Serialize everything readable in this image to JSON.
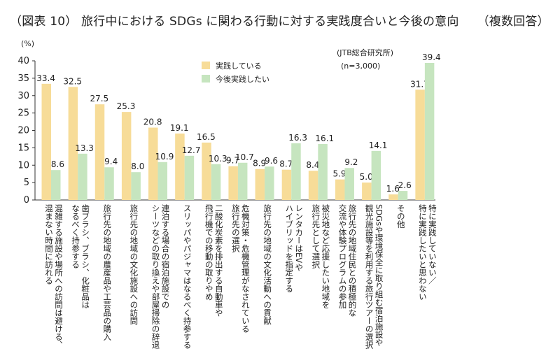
{
  "title": "（図表 10） 旅行中における SDGs に関わる行動に対する実践度合いと今後の意向",
  "title_suffix": "（複数回答）",
  "unit_label": "(%)",
  "source_note": "(JTB総合研究所)",
  "sample_note": "(n=3,000)",
  "colors": {
    "practice": "#f7dc98",
    "future": "#c6e5bf",
    "axis": "#333333"
  },
  "chart_data": {
    "type": "bar",
    "title": "（図表 10） 旅行中における SDGs に関わる行動に対する実践度合いと今後の意向",
    "ylim": [
      0,
      40
    ],
    "yticks": [
      0,
      5,
      10,
      15,
      20,
      25,
      30,
      35,
      40
    ],
    "grid": false,
    "legend_position": "top-center",
    "categories": [
      [
        "混雑する施設や場所への訪問は避ける、",
        "混まない時間に訪れる"
      ],
      [
        "歯ブラシ、ブラシ、化粧品は",
        "なるべく持参する"
      ],
      [
        "旅行先の地域の農産品や工芸品の購入"
      ],
      [
        "旅行先の地域の文化施設への訪問"
      ],
      [
        "連泊する場合の宿泊施設での",
        "シーツなどの取り換えや部屋掃除の辞退"
      ],
      [
        "スリッパやパジャマはなるべく持参する"
      ],
      [
        "二酸化炭素を排出する自動車や",
        "飛行機での移動の取りやめ"
      ],
      [
        "危機対策・危機管理がなされている",
        "旅行先の選択"
      ],
      [
        "旅行先の地域の文化活動への貢献"
      ],
      [
        "レンタカーはEVや",
        "ハイブリッドを指定する"
      ],
      [
        "被災地など応援したい地域を",
        "旅行先として選択"
      ],
      [
        "旅行先の地域住民との積極的な",
        "交流や体験プログラムの参加"
      ],
      [
        "SDGsや環境保全に取り組む宿泊施設や",
        "観光施設等を利用する旅行ツアーの選択"
      ],
      [
        "その他"
      ],
      [
        "特に実践していない／",
        "特に実践したいと思わない"
      ]
    ],
    "series": [
      {
        "name": "実践している",
        "values": [
          33.4,
          32.5,
          27.5,
          25.3,
          20.8,
          19.1,
          16.5,
          9.7,
          8.9,
          8.7,
          8.4,
          5.9,
          5.0,
          1.6,
          31.7
        ]
      },
      {
        "name": "今後実践したい",
        "values": [
          8.6,
          13.3,
          9.4,
          8.0,
          10.9,
          12.7,
          10.3,
          10.7,
          9.6,
          16.3,
          16.1,
          9.2,
          14.1,
          2.6,
          39.4
        ]
      }
    ]
  }
}
